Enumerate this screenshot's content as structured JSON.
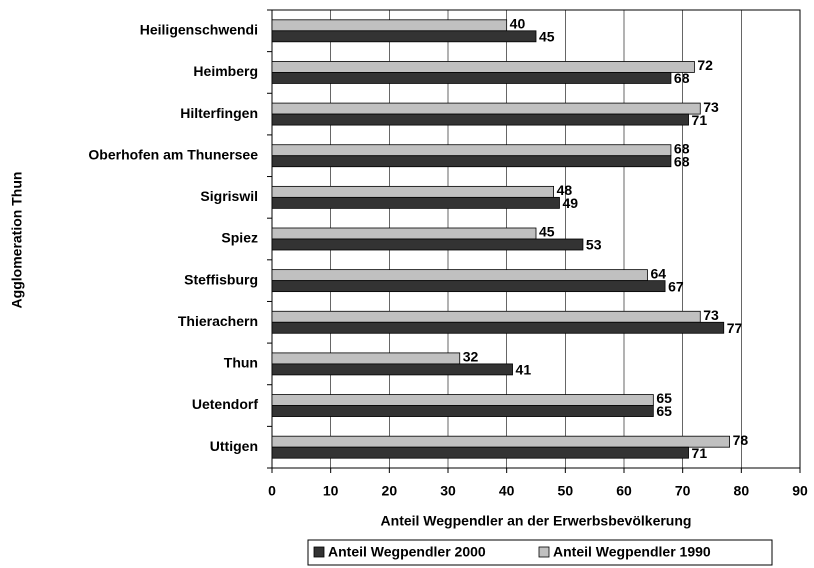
{
  "chart_data": {
    "type": "hbar",
    "xlabel": "Anteil Wegpendler an der Erwerbsbevölkerung",
    "ylabel": "Agglomeration Thun",
    "categories": [
      "Heiligenschwendi",
      "Heimberg",
      "Hilterfingen",
      "Oberhofen am Thunersee",
      "Sigriswil",
      "Spiez",
      "Steffisburg",
      "Thierachern",
      "Thun",
      "Uetendorf",
      "Uttigen"
    ],
    "series": [
      {
        "name": "Anteil Wegpendler 2000",
        "color": "#333333",
        "values": [
          45,
          68,
          71,
          68,
          49,
          53,
          67,
          77,
          41,
          65,
          71
        ]
      },
      {
        "name": "Anteil Wegpendler 1990",
        "color": "#c0c0c0",
        "values": [
          40,
          72,
          73,
          68,
          48,
          45,
          64,
          73,
          32,
          65,
          78
        ]
      }
    ],
    "xlim": [
      0,
      90
    ],
    "xticks": [
      0,
      10,
      20,
      30,
      40,
      50,
      60,
      70,
      80,
      90
    ],
    "grid": true,
    "legend": "bottom"
  }
}
